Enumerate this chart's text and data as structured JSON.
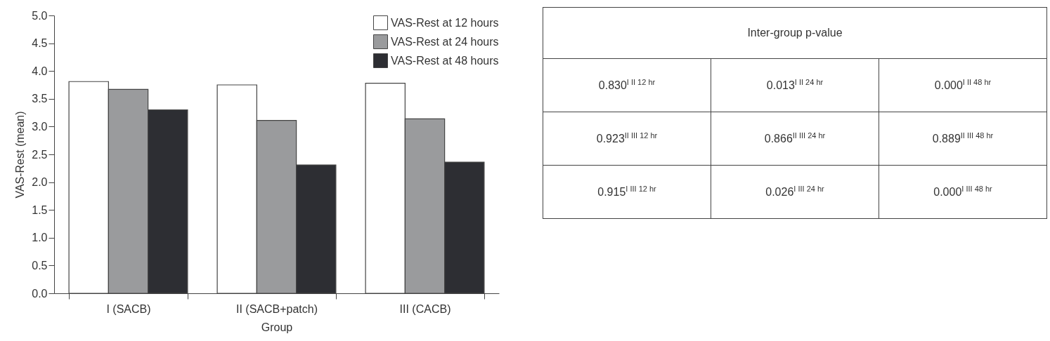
{
  "chart_data": [
    {
      "type": "bar",
      "xlabel": "Group",
      "ylabel": "VAS-Rest (mean)",
      "categories": [
        "I (SACB)",
        "II (SACB+patch)",
        "III (CACB)"
      ],
      "series": [
        {
          "name": "VAS-Rest at 12 hours",
          "color": "#ffffff",
          "values": [
            3.81,
            3.75,
            3.78
          ]
        },
        {
          "name": "VAS-Rest at 24 hours",
          "color": "#9a9b9d",
          "values": [
            3.67,
            3.11,
            3.14
          ]
        },
        {
          "name": "VAS-Rest at 48 hours",
          "color": "#2d2e33",
          "values": [
            3.3,
            2.31,
            2.36
          ]
        }
      ],
      "ylim": [
        0,
        5
      ],
      "yticks": [
        {
          "value": 0,
          "label": "0.0"
        },
        0.5,
        {
          "value": 1,
          "label": "1.0"
        },
        1.5,
        {
          "value": 2,
          "label": "2.0"
        },
        2.5,
        {
          "value": 3,
          "label": "3.0"
        },
        3.5,
        {
          "value": 4,
          "label": "4.0"
        },
        4.5,
        {
          "value": 5,
          "label": "5.0"
        }
      ],
      "grid": false,
      "legend": "top right"
    },
    {
      "type": "other",
      "title": "Inter-group p-value",
      "annotations": [
        "0.830$^{I II 12 hr}$",
        "0.013$^{I II 24 hr}$",
        "0.000$^{I II 48 hr}$",
        "0.923$^{II III 12 hr}$",
        "0.866$^{II III 24 hr}$",
        "0.889$^{II III 48 hr}$",
        "0.915$^{I III 12 hr}$",
        "0.026$^{I III 24 hr}$",
        "0.000$^{I III 48 hr}$"
      ]
    }
  ]
}
